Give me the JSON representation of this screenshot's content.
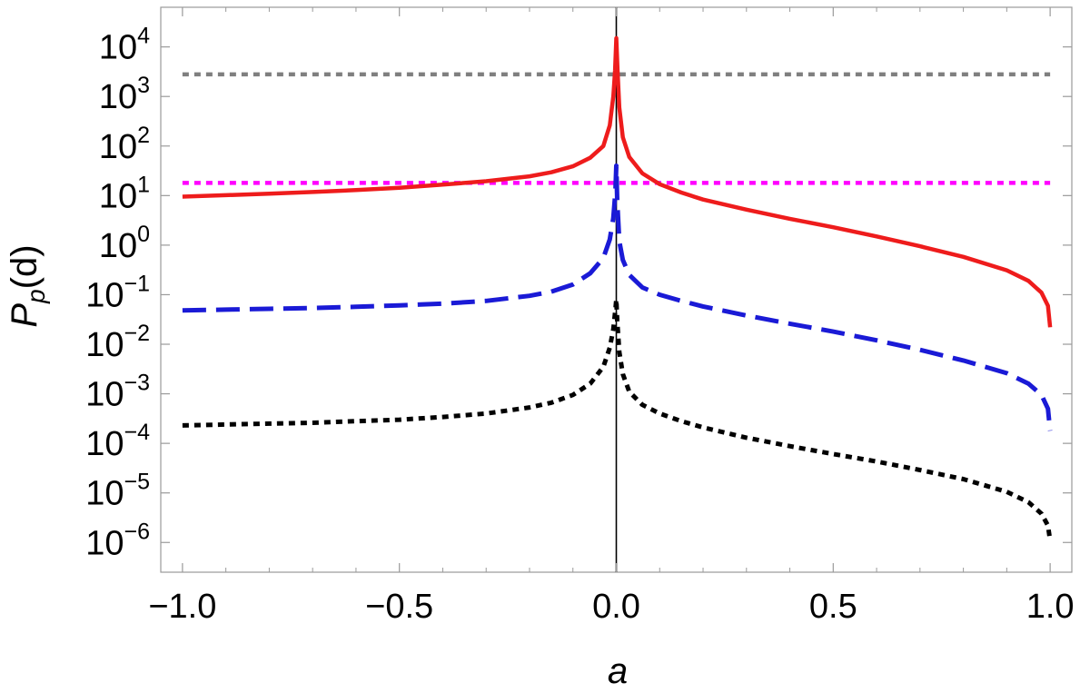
{
  "chart_data": {
    "type": "line",
    "title": "",
    "xlabel": "a",
    "ylabel": {
      "base": "P",
      "sub": "p",
      "tail": "(d)"
    },
    "xlim": [
      -1.05,
      1.05
    ],
    "ylim_exponent": [
      -6.6,
      4.8
    ],
    "y_scale": "log",
    "grid": false,
    "x_ticks": [
      {
        "value": -1.0,
        "label": "−1.0"
      },
      {
        "value": -0.5,
        "label": "−0.5"
      },
      {
        "value": 0.0,
        "label": "0.0"
      },
      {
        "value": 0.5,
        "label": "0.5"
      },
      {
        "value": 1.0,
        "label": "1.0"
      }
    ],
    "y_ticks": [
      {
        "exponent": 4,
        "base": "10",
        "sup": "4"
      },
      {
        "exponent": 3,
        "base": "10",
        "sup": "3"
      },
      {
        "exponent": 2,
        "base": "10",
        "sup": "2"
      },
      {
        "exponent": 1,
        "base": "10",
        "sup": "1"
      },
      {
        "exponent": 0,
        "base": "10",
        "sup": "0"
      },
      {
        "exponent": -1,
        "base": "10",
        "sup": "−1"
      },
      {
        "exponent": -2,
        "base": "10",
        "sup": "−2"
      },
      {
        "exponent": -3,
        "base": "10",
        "sup": "−3"
      },
      {
        "exponent": -4,
        "base": "10",
        "sup": "−4"
      },
      {
        "exponent": -5,
        "base": "10",
        "sup": "−5"
      },
      {
        "exponent": -6,
        "base": "10",
        "sup": "−6"
      }
    ],
    "series": [
      {
        "color": "#ee1c1c",
        "style": "solid",
        "points": [
          [
            -1.0,
            9.5
          ],
          [
            -0.9,
            10.2
          ],
          [
            -0.8,
            10.9
          ],
          [
            -0.7,
            11.8
          ],
          [
            -0.6,
            12.9
          ],
          [
            -0.5,
            14.4
          ],
          [
            -0.4,
            16.6
          ],
          [
            -0.3,
            19.5
          ],
          [
            -0.2,
            24.5
          ],
          [
            -0.15,
            29.5
          ],
          [
            -0.1,
            39
          ],
          [
            -0.06,
            58
          ],
          [
            -0.03,
            100
          ],
          [
            -0.015,
            260
          ],
          [
            -0.007,
            1000
          ],
          [
            -0.003,
            3300
          ],
          [
            0.0,
            15000
          ],
          [
            0.003,
            3300
          ],
          [
            0.007,
            600
          ],
          [
            0.015,
            150
          ],
          [
            0.03,
            60
          ],
          [
            0.06,
            28
          ],
          [
            0.1,
            17
          ],
          [
            0.15,
            11.5
          ],
          [
            0.2,
            8.3
          ],
          [
            0.3,
            5.2
          ],
          [
            0.4,
            3.4
          ],
          [
            0.5,
            2.3
          ],
          [
            0.6,
            1.5
          ],
          [
            0.7,
            0.95
          ],
          [
            0.8,
            0.58
          ],
          [
            0.9,
            0.31
          ],
          [
            0.95,
            0.19
          ],
          [
            0.98,
            0.11
          ],
          [
            0.995,
            0.06
          ],
          [
            1.0,
            0.022
          ]
        ]
      },
      {
        "color": "#1a1ad6",
        "style": "dashed",
        "points": [
          [
            -1.0,
            0.048
          ],
          [
            -0.9,
            0.05
          ],
          [
            -0.8,
            0.052
          ],
          [
            -0.7,
            0.054
          ],
          [
            -0.6,
            0.057
          ],
          [
            -0.5,
            0.061
          ],
          [
            -0.4,
            0.066
          ],
          [
            -0.3,
            0.075
          ],
          [
            -0.2,
            0.095
          ],
          [
            -0.15,
            0.115
          ],
          [
            -0.1,
            0.16
          ],
          [
            -0.06,
            0.27
          ],
          [
            -0.03,
            0.55
          ],
          [
            -0.015,
            1.3
          ],
          [
            -0.007,
            3.5
          ],
          [
            -0.002,
            12
          ],
          [
            0.0,
            40
          ],
          [
            0.002,
            8
          ],
          [
            0.007,
            1.2
          ],
          [
            0.015,
            0.5
          ],
          [
            0.03,
            0.25
          ],
          [
            0.06,
            0.14
          ],
          [
            0.1,
            0.1
          ],
          [
            0.15,
            0.075
          ],
          [
            0.2,
            0.058
          ],
          [
            0.3,
            0.038
          ],
          [
            0.4,
            0.026
          ],
          [
            0.5,
            0.018
          ],
          [
            0.6,
            0.012
          ],
          [
            0.7,
            0.0077
          ],
          [
            0.8,
            0.0047
          ],
          [
            0.9,
            0.0026
          ],
          [
            0.95,
            0.0016
          ],
          [
            0.98,
            0.00095
          ],
          [
            0.995,
            0.0005
          ],
          [
            1.0,
            0.00018
          ]
        ]
      },
      {
        "color": "#000000",
        "style": "dotted",
        "points": [
          [
            -1.0,
            0.00023
          ],
          [
            -0.9,
            0.00024
          ],
          [
            -0.8,
            0.00025
          ],
          [
            -0.7,
            0.00026
          ],
          [
            -0.6,
            0.00028
          ],
          [
            -0.5,
            0.0003
          ],
          [
            -0.4,
            0.00034
          ],
          [
            -0.3,
            0.0004
          ],
          [
            -0.2,
            0.00053
          ],
          [
            -0.15,
            0.00066
          ],
          [
            -0.1,
            0.00095
          ],
          [
            -0.06,
            0.0016
          ],
          [
            -0.03,
            0.0035
          ],
          [
            -0.015,
            0.0085
          ],
          [
            -0.007,
            0.02
          ],
          [
            -0.002,
            0.05
          ],
          [
            0.0,
            0.08
          ],
          [
            0.002,
            0.03
          ],
          [
            0.007,
            0.007
          ],
          [
            0.015,
            0.0025
          ],
          [
            0.03,
            0.0011
          ],
          [
            0.06,
            0.0006
          ],
          [
            0.1,
            0.0004
          ],
          [
            0.15,
            0.00028
          ],
          [
            0.2,
            0.00021
          ],
          [
            0.3,
            0.00013
          ],
          [
            0.4,
            8.8e-05
          ],
          [
            0.5,
            6.1e-05
          ],
          [
            0.6,
            4.3e-05
          ],
          [
            0.7,
            2.9e-05
          ],
          [
            0.8,
            1.9e-05
          ],
          [
            0.9,
            1.05e-05
          ],
          [
            0.95,
            6.5e-06
          ],
          [
            0.98,
            3.8e-06
          ],
          [
            0.995,
            2.2e-06
          ],
          [
            1.0,
            1.1e-06
          ]
        ]
      }
    ],
    "reference_lines": [
      {
        "color": "#7f7f7f",
        "style": "dotted",
        "y": 2800
      },
      {
        "color": "#ff00ff",
        "style": "dotted",
        "y": 18
      }
    ],
    "vertical_line": {
      "x": 0.0,
      "color": "#000000"
    }
  }
}
